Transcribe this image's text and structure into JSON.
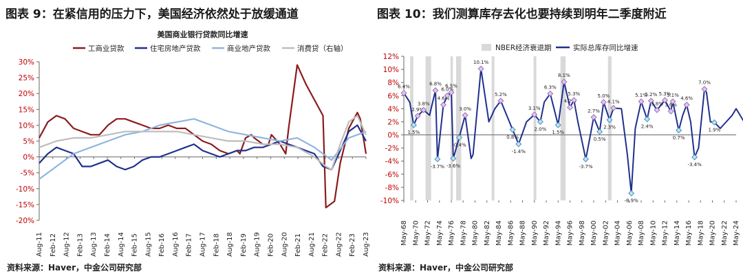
{
  "left": {
    "title": "图表 9：在紧信用的压力下，美国经济依然处于放缓通道",
    "source": "资料来源：Haver，中金公司研究部",
    "chart_data": {
      "type": "line",
      "title": "美国商业银行贷款同比增速",
      "legend": [
        "工商业贷款",
        "住宅房地产贷款",
        "商业地产贷款",
        "消费贷（右轴）"
      ],
      "legend_position": "top",
      "x_ticks": [
        "Aug-11",
        "Feb-12",
        "Aug-12",
        "Feb-13",
        "Aug-13",
        "Feb-14",
        "Aug-14",
        "Feb-15",
        "Aug-15",
        "Feb-16",
        "Aug-16",
        "Feb-17",
        "Aug-17",
        "Feb-18",
        "Aug-18",
        "Feb-19",
        "Aug-19",
        "Feb-20",
        "Aug-20",
        "Feb-21",
        "Aug-21",
        "Feb-22",
        "Aug-22",
        "Feb-23",
        "Aug-23"
      ],
      "y_ticks": [
        "30%",
        "25%",
        "20%",
        "15%",
        "10%",
        "5%",
        "0%",
        "-5%",
        "-10%",
        "-15%",
        "-20%"
      ],
      "ylim": [
        -20,
        30
      ],
      "grid": false,
      "series": [
        {
          "name": "工商业贷款",
          "color": "#8b1a1a",
          "x": [
            0,
            3,
            6,
            9,
            12,
            15,
            18,
            21,
            24,
            27,
            30,
            33,
            36,
            39,
            42,
            45,
            48,
            51,
            54,
            57,
            60,
            63,
            66,
            69,
            70,
            72,
            74,
            75,
            78,
            80,
            81,
            84,
            86,
            87,
            90,
            93,
            96,
            99,
            100,
            103,
            105,
            108,
            111,
            112,
            114
          ],
          "values": [
            6,
            11,
            13,
            12,
            9,
            8,
            7,
            7,
            10,
            12,
            12,
            11,
            10,
            9,
            9,
            10,
            9,
            9,
            7,
            5,
            4,
            2,
            1,
            2,
            1,
            6,
            7,
            6,
            4,
            4,
            7,
            4,
            1,
            9,
            29,
            23,
            18,
            13,
            -16,
            -14,
            -2,
            9,
            14,
            12,
            1
          ]
        },
        {
          "name": "住宅房地产贷款",
          "color": "#1f2f8c",
          "x": [
            0,
            3,
            6,
            9,
            12,
            15,
            18,
            21,
            24,
            27,
            30,
            33,
            36,
            39,
            42,
            45,
            48,
            51,
            54,
            57,
            60,
            63,
            66,
            69,
            72,
            75,
            78,
            81,
            84,
            87,
            90,
            93,
            96,
            99,
            102,
            105,
            108,
            111,
            114
          ],
          "values": [
            -2,
            1,
            3,
            2,
            1,
            -3,
            -3,
            -2,
            -1,
            -3,
            -4,
            -3,
            -1,
            0,
            0,
            1,
            2,
            3,
            4,
            2,
            1,
            0,
            1,
            2,
            2,
            3,
            3,
            4,
            5,
            4,
            3,
            2,
            1,
            -3,
            -4,
            2,
            8,
            10,
            5
          ]
        },
        {
          "name": "商业地产贷款",
          "color": "#8fb4df",
          "x": [
            0,
            6,
            12,
            18,
            24,
            30,
            36,
            42,
            48,
            54,
            60,
            66,
            72,
            78,
            84,
            90,
            96,
            102,
            108,
            114
          ],
          "values": [
            -7,
            -3,
            1,
            3,
            5,
            7,
            8,
            10,
            11,
            12,
            10,
            8,
            7,
            6,
            5,
            6,
            3,
            -1,
            6,
            8
          ]
        },
        {
          "name": "消费贷（右轴）",
          "color": "#bdbdbd",
          "x": [
            0,
            6,
            12,
            18,
            24,
            30,
            36,
            42,
            48,
            54,
            60,
            66,
            72,
            78,
            84,
            90,
            96,
            100,
            102,
            105,
            108,
            111,
            114
          ],
          "values": [
            3,
            5,
            6,
            6,
            7,
            8,
            8,
            8,
            8,
            7,
            6,
            5,
            5,
            4,
            4,
            3,
            0,
            -3,
            -4,
            4,
            11,
            13,
            7
          ]
        }
      ]
    }
  },
  "right": {
    "title": "图表 10：我们测算库存去化也要持续到明年二季度附近",
    "source": "资料来源：Haver，中金公司研究部",
    "chart_data": {
      "type": "line",
      "legend": [
        "NBER经济衰退期",
        "实际总库存同比增速"
      ],
      "legend_position": "top",
      "x_ticks": [
        "May-68",
        "May-70",
        "May-72",
        "May-74",
        "May-76",
        "May-78",
        "May-80",
        "May-82",
        "May-84",
        "May-86",
        "May-88",
        "May-90",
        "May-92",
        "May-94",
        "May-96",
        "May-98",
        "May-00",
        "May-02",
        "May-04",
        "May-06",
        "May-08",
        "May-10",
        "May-12",
        "May-14",
        "May-16",
        "May-18",
        "May-20",
        "May-22",
        "May-24"
      ],
      "y_ticks": [
        "12%",
        "10%",
        "8%",
        "6%",
        "4%",
        "2%",
        "0%",
        "-2%",
        "-4%",
        "-6%",
        "-8%",
        "-10%"
      ],
      "ylim": [
        -10,
        12
      ],
      "grid": false,
      "recessions": [
        [
          1.6,
          2.4
        ],
        [
          5.5,
          6.9
        ],
        [
          11.8,
          12.4
        ],
        [
          13.2,
          14.5
        ],
        [
          22.2,
          22.9
        ],
        [
          32.8,
          33.5
        ],
        [
          39.6,
          40.9
        ],
        [
          51.6,
          52.5
        ]
      ],
      "series": [
        {
          "name": "实际总库存同比增速",
          "color": "#1f2f8c",
          "x": [
            0,
            1.5,
            2.5,
            3.5,
            5,
            6.5,
            8,
            8.5,
            10,
            11,
            12,
            12.5,
            14,
            15.5,
            17,
            17.5,
            19.5,
            21.5,
            23,
            24.5,
            27.5,
            29,
            31,
            33,
            34.5,
            35.5,
            37,
            39,
            40.5,
            42,
            43,
            44,
            46,
            48,
            49.5,
            50.5,
            52,
            53,
            55,
            56.5,
            57.5,
            58.5,
            60,
            61.5,
            62.5,
            64,
            66,
            67.5,
            68,
            69.5,
            70.5,
            71.5,
            72.5,
            73.5,
            74.5,
            76,
            76.5,
            77.5,
            78.5,
            80,
            81.5,
            83,
            84,
            85,
            86,
            87,
            88,
            89,
            90
          ],
          "values": [
            6.4,
            5,
            1.5,
            2.9,
            3.8,
            3.0,
            6.8,
            -3.7,
            4.6,
            6.0,
            6.5,
            -3.6,
            -0.4,
            3.0,
            -3.6,
            -3.0,
            10.1,
            2,
            4,
            5.2,
            0.8,
            -1.4,
            2,
            3.1,
            2.0,
            5,
            6.3,
            1.5,
            8.1,
            4.2,
            5.3,
            2,
            -3.7,
            2.7,
            0.5,
            5.0,
            2.3,
            4.1,
            4,
            -3,
            -8.9,
            1,
            5.1,
            2.4,
            5.2,
            3.8,
            5.3,
            3.6,
            5.1,
            0.7,
            3,
            4.6,
            2,
            -3.4,
            -2,
            7.0,
            6.5,
            2,
            1.9,
            1,
            2,
            3,
            4,
            3,
            2,
            1,
            0.5,
            0,
            0
          ],
          "point_labels": [
            {
              "x": 0,
              "y": 6.4,
              "text": "6.4%"
            },
            {
              "x": 2.5,
              "y": 1.5,
              "text": "1.5%"
            },
            {
              "x": 3.5,
              "y": 2.9,
              "text": "2.9%"
            },
            {
              "x": 5,
              "y": 3.8,
              "text": "3.8%"
            },
            {
              "x": 8,
              "y": 6.8,
              "text": "6.8%"
            },
            {
              "x": 8.5,
              "y": -3.7,
              "text": "-3.7%"
            },
            {
              "x": 10,
              "y": 4.6,
              "text": "4.6%"
            },
            {
              "x": 11,
              "y": 6.0,
              "text": "6.0%"
            },
            {
              "x": 12,
              "y": 6.5,
              "text": "6.5%"
            },
            {
              "x": 12.5,
              "y": -3.6,
              "text": "-3.6%"
            },
            {
              "x": 14,
              "y": -0.4,
              "text": "-0.4%"
            },
            {
              "x": 15.5,
              "y": 3.0,
              "text": "3.0%"
            },
            {
              "x": 19.5,
              "y": 10.1,
              "text": "10.1%"
            },
            {
              "x": 24.5,
              "y": 5.2,
              "text": "5.2%"
            },
            {
              "x": 27.5,
              "y": 0.8,
              "text": "0.8%"
            },
            {
              "x": 29,
              "y": -1.4,
              "text": "-1.4%"
            },
            {
              "x": 33,
              "y": 3.1,
              "text": "3.1%"
            },
            {
              "x": 34.5,
              "y": 2.0,
              "text": "2.0%"
            },
            {
              "x": 37,
              "y": 6.3,
              "text": "6.3%"
            },
            {
              "x": 39,
              "y": 1.5,
              "text": "1.5%"
            },
            {
              "x": 40.5,
              "y": 8.1,
              "text": "8.1%"
            },
            {
              "x": 42,
              "y": 4.2,
              "text": "4.2%"
            },
            {
              "x": 43,
              "y": 5.3,
              "text": "5.3%"
            },
            {
              "x": 46,
              "y": -3.7,
              "text": "-3.7%"
            },
            {
              "x": 48,
              "y": 2.7,
              "text": "2.7%"
            },
            {
              "x": 49.5,
              "y": 0.5,
              "text": "0.5%"
            },
            {
              "x": 50.5,
              "y": 5.0,
              "text": "5.0%"
            },
            {
              "x": 52,
              "y": 2.3,
              "text": "2.3%"
            },
            {
              "x": 53,
              "y": 4.1,
              "text": "4.1%"
            },
            {
              "x": 57.5,
              "y": -8.9,
              "text": "-8.9%"
            },
            {
              "x": 60,
              "y": 5.1,
              "text": "5.1%"
            },
            {
              "x": 61.5,
              "y": 2.4,
              "text": "2.4%"
            },
            {
              "x": 62.5,
              "y": 5.2,
              "text": "5.2%"
            },
            {
              "x": 64,
              "y": 3.8,
              "text": "3.8%"
            },
            {
              "x": 66,
              "y": 5.3,
              "text": "5.3%"
            },
            {
              "x": 67.5,
              "y": 3.6,
              "text": "3.6%"
            },
            {
              "x": 68,
              "y": 5.1,
              "text": "5.1%"
            },
            {
              "x": 69.5,
              "y": 0.7,
              "text": "0.7%"
            },
            {
              "x": 71.5,
              "y": 4.6,
              "text": "4.6%"
            },
            {
              "x": 73.5,
              "y": -3.4,
              "text": "-3.4%"
            },
            {
              "x": 76,
              "y": 7.0,
              "text": "7.0%"
            },
            {
              "x": 78.5,
              "y": 1.9,
              "text": "1.9%"
            }
          ]
        }
      ]
    }
  }
}
